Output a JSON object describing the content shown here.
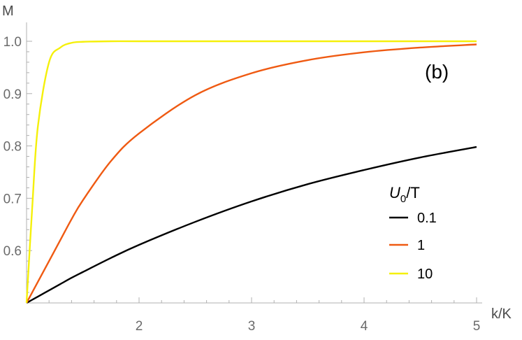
{
  "chart_data": {
    "type": "line",
    "title": "",
    "panel_label": "(b)",
    "xlabel": "k/K",
    "ylabel": "M",
    "xlim": [
      1,
      5
    ],
    "ylim": [
      0.5,
      1.0
    ],
    "x_ticks": [
      2,
      3,
      4,
      5
    ],
    "y_ticks": [
      0.6,
      0.7,
      0.8,
      0.9,
      1.0
    ],
    "x_tick_labels": [
      "2",
      "3",
      "4",
      "5"
    ],
    "y_tick_labels": [
      "0.6",
      "0.7",
      "0.8",
      "0.9",
      "1.0"
    ],
    "legend": {
      "title_main": "U",
      "title_sub": "0",
      "title_rest": "/T",
      "placement": "right"
    },
    "grid": false,
    "x": [
      1.0,
      1.05,
      1.1,
      1.2,
      1.3,
      1.4,
      1.5,
      1.75,
      2.0,
      2.5,
      3.0,
      3.5,
      4.0,
      4.5,
      5.0
    ],
    "series": [
      {
        "name": "0.1",
        "color": "#000000",
        "values": [
          0.5,
          0.506,
          0.512,
          0.524,
          0.536,
          0.548,
          0.559,
          0.586,
          0.611,
          0.655,
          0.694,
          0.727,
          0.754,
          0.778,
          0.798
        ]
      },
      {
        "name": "1",
        "color": "#ef5a12",
        "values": [
          0.5,
          0.52,
          0.54,
          0.58,
          0.62,
          0.66,
          0.696,
          0.771,
          0.824,
          0.897,
          0.939,
          0.964,
          0.979,
          0.988,
          0.994
        ]
      },
      {
        "name": "10",
        "color": "#f5f00a",
        "values": [
          0.5,
          0.681,
          0.836,
          0.96,
          0.988,
          0.997,
          0.999,
          1.0,
          1.0,
          1.0,
          1.0,
          1.0,
          1.0,
          1.0,
          1.0
        ]
      }
    ]
  }
}
